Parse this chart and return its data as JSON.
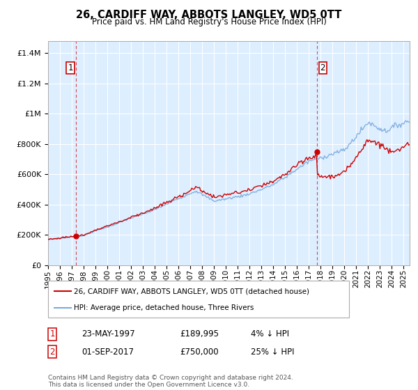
{
  "title": "26, CARDIFF WAY, ABBOTS LANGLEY, WD5 0TT",
  "subtitle": "Price paid vs. HM Land Registry's House Price Index (HPI)",
  "ytick_values": [
    0,
    200000,
    400000,
    600000,
    800000,
    1000000,
    1200000,
    1400000
  ],
  "ylim": [
    0,
    1480000
  ],
  "xlim_start": 1995.0,
  "xlim_end": 2025.5,
  "hpi_color": "#7aaadd",
  "price_color": "#cc0000",
  "marker1_date_x": 1997.38,
  "marker1_y": 189995,
  "marker2_date_x": 2017.67,
  "marker2_y": 750000,
  "legend_label1": "26, CARDIFF WAY, ABBOTS LANGLEY, WD5 0TT (detached house)",
  "legend_label2": "HPI: Average price, detached house, Three Rivers",
  "table_row1": [
    "1",
    "23-MAY-1997",
    "£189,995",
    "4% ↓ HPI"
  ],
  "table_row2": [
    "2",
    "01-SEP-2017",
    "£750,000",
    "25% ↓ HPI"
  ],
  "footer": "Contains HM Land Registry data © Crown copyright and database right 2024.\nThis data is licensed under the Open Government Licence v3.0.",
  "plot_bg_color": "#ddeeff",
  "background_color": "#ffffff",
  "grid_color": "#ffffff"
}
